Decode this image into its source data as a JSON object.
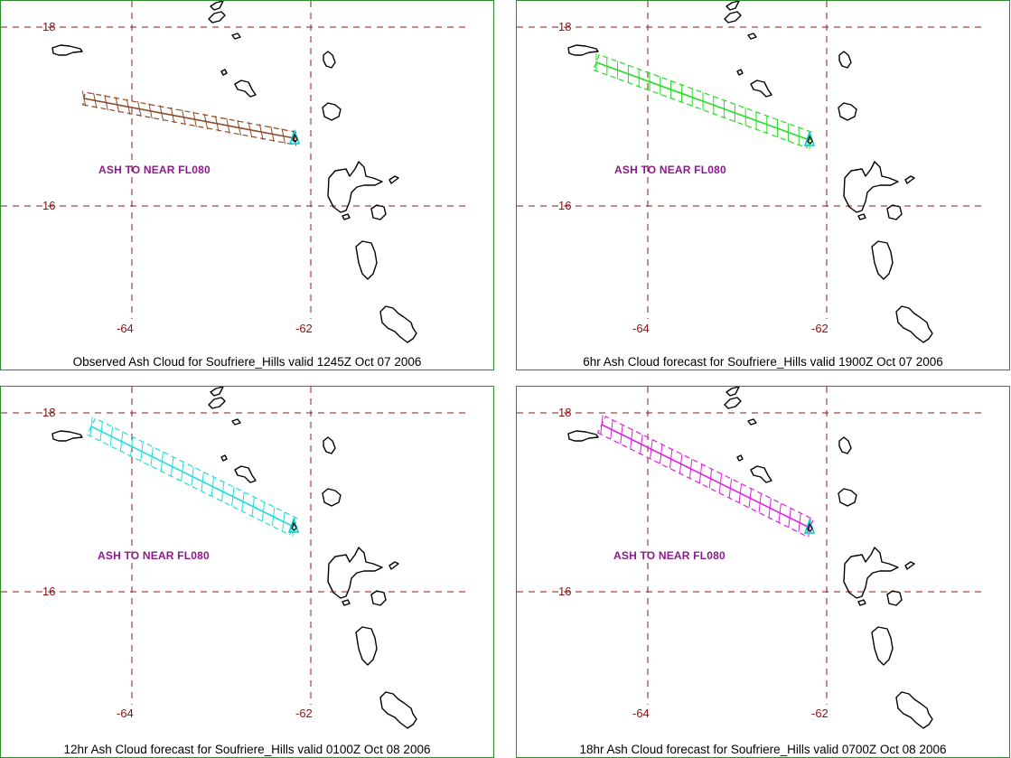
{
  "grid": {
    "lat_labels": [
      "18",
      "16"
    ],
    "lon_labels": [
      "-64",
      "-62"
    ],
    "line_color": "#8b1a1a"
  },
  "panels": [
    {
      "caption": "Observed Ash Cloud for Soufriere_Hills valid 1245Z Oct 07 2006",
      "ash_label": "ASH TO NEAR FL080",
      "cloud_color": "#8b4a2a"
    },
    {
      "caption": "6hr Ash Cloud forecast for Soufriere_Hills valid 1900Z Oct 07 2006",
      "ash_label": "ASH TO NEAR FL080",
      "cloud_color": "#22dd22"
    },
    {
      "caption": "12hr Ash Cloud forecast for Soufriere_Hills valid 0100Z Oct 08 2006",
      "ash_label": "ASH TO NEAR FL080",
      "cloud_color": "#22dddd"
    },
    {
      "caption": "18hr Ash Cloud forecast for Soufriere_Hills valid 0700Z Oct 08 2006",
      "ash_label": "ASH TO NEAR FL080",
      "cloud_color": "#dd22dd"
    }
  ],
  "volcano": {
    "name": "Soufriere_Hills",
    "marker_color": "#00cccc",
    "icon": "volcano-marker-icon"
  }
}
